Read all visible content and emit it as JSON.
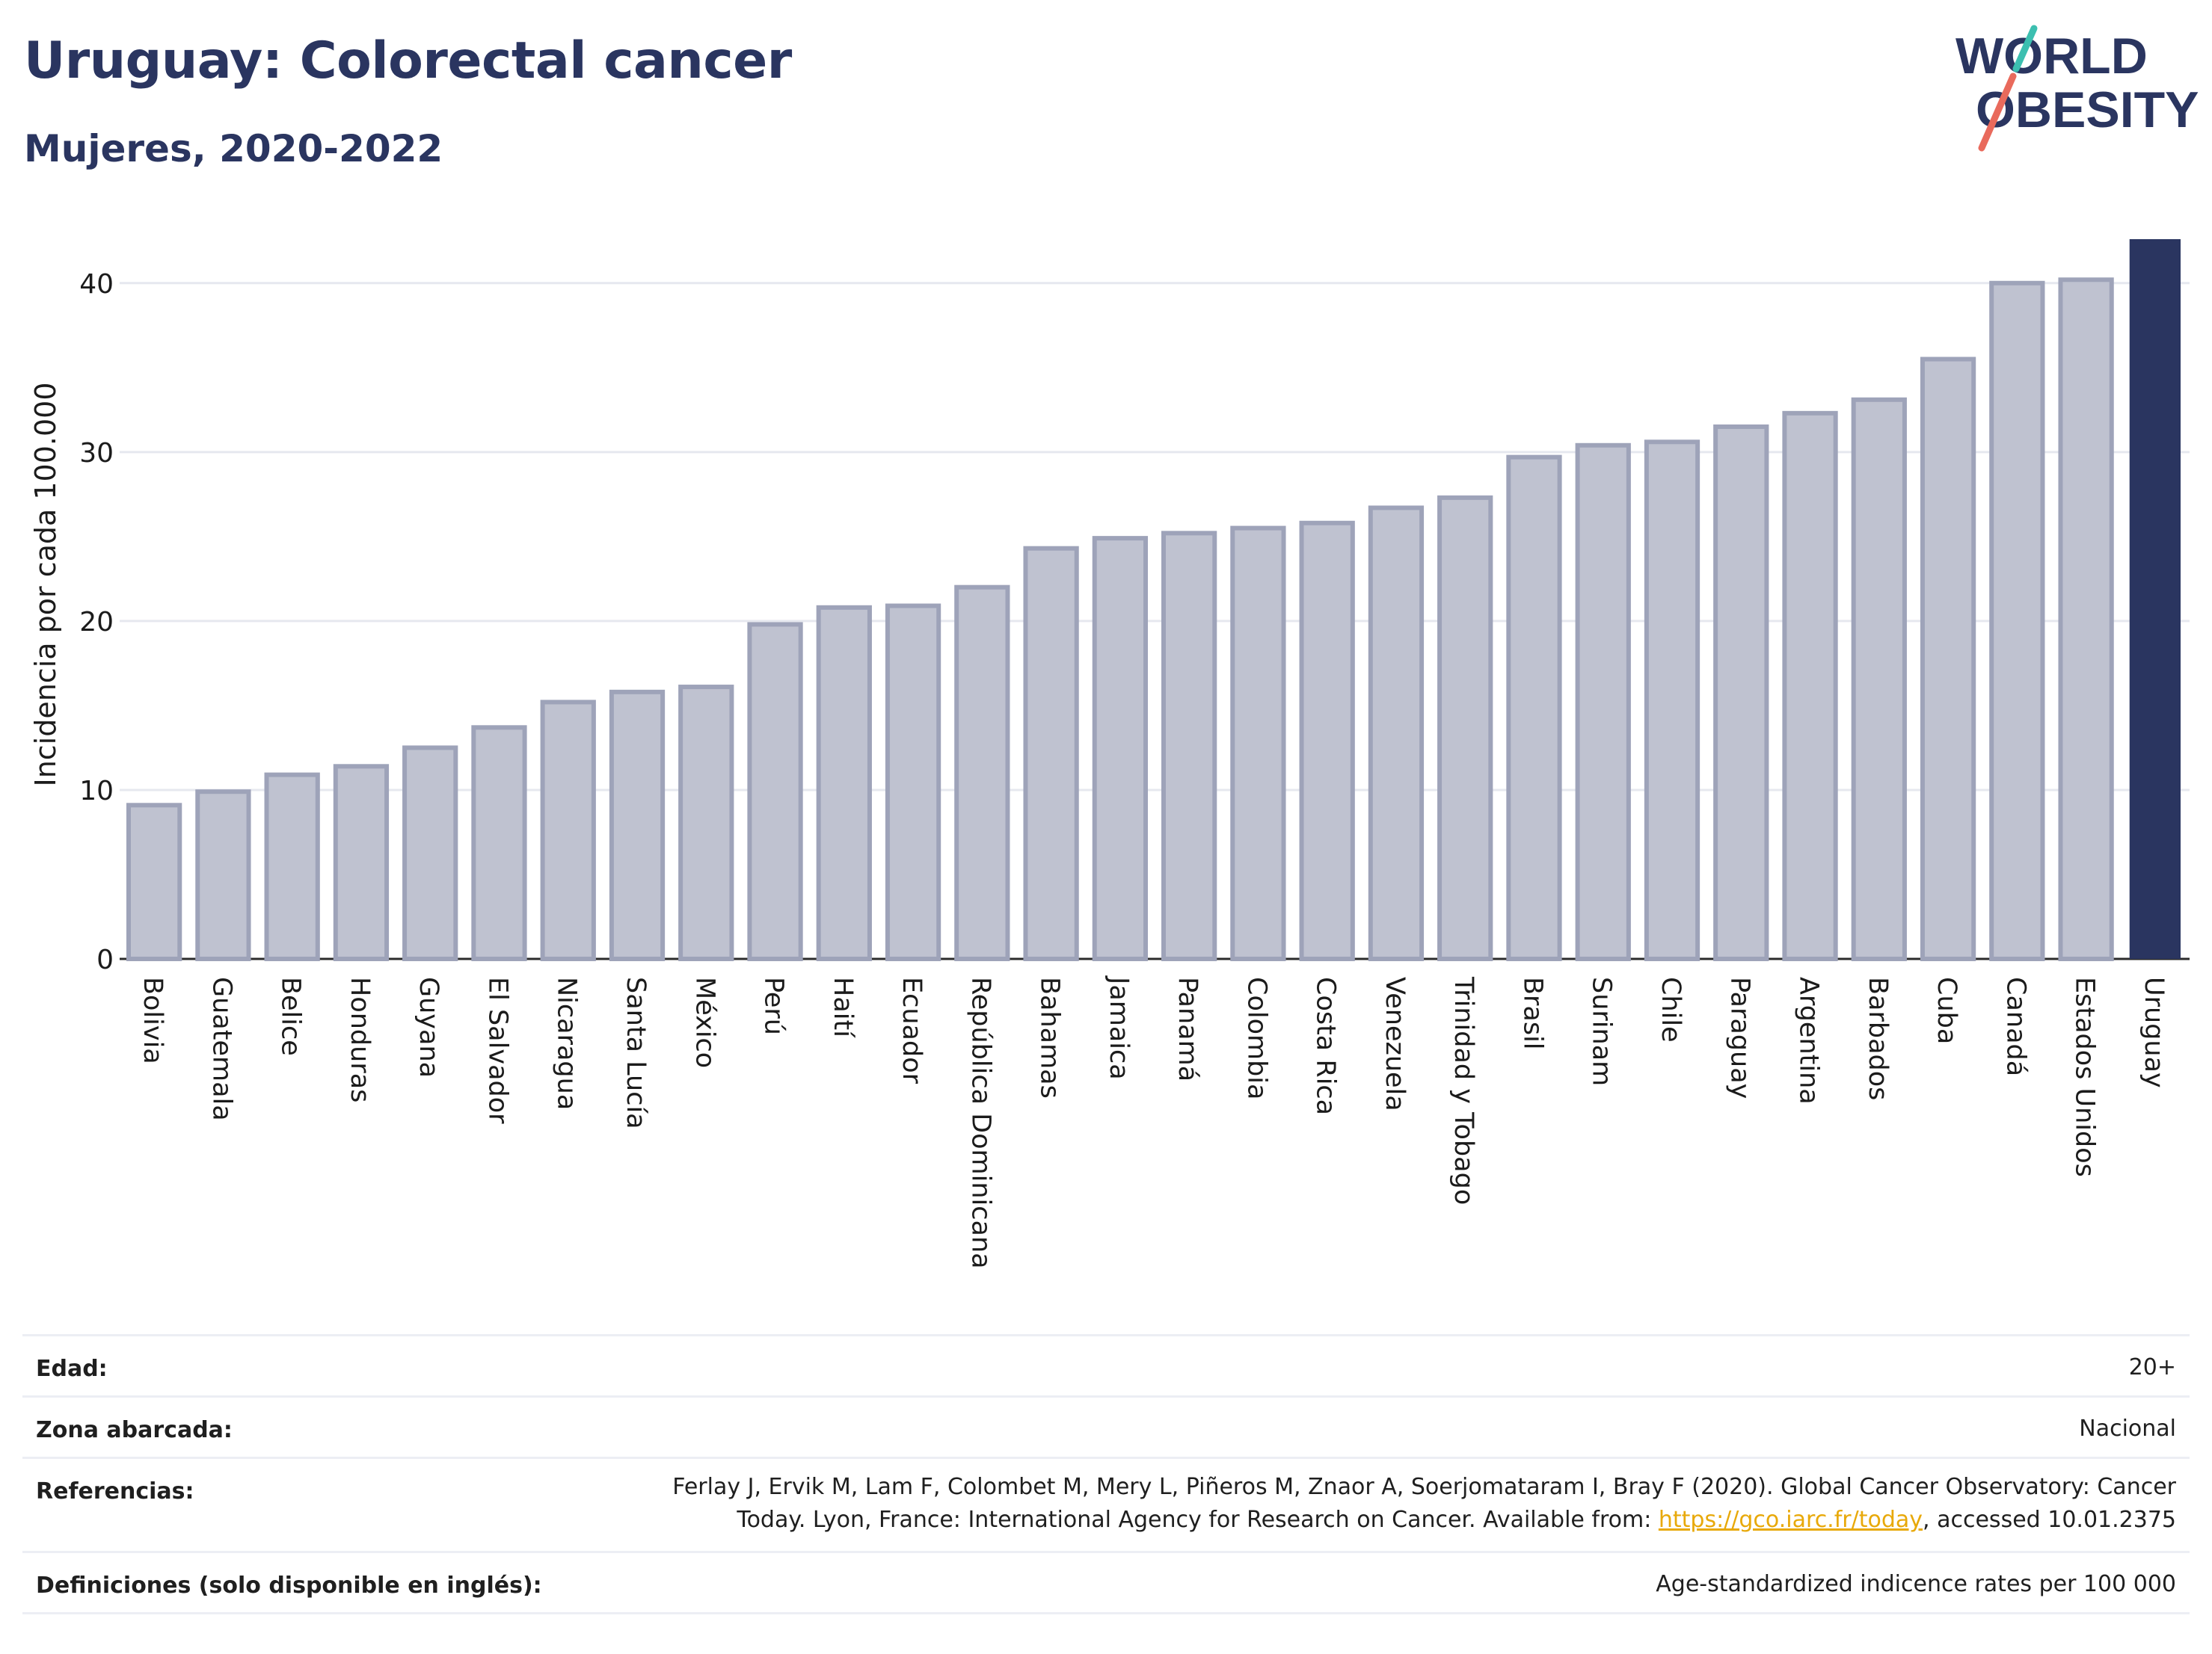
{
  "header": {
    "title": "Uruguay: Colorectal cancer",
    "subtitle": "Mujeres, 2020-2022"
  },
  "logo": {
    "line1": "WORLD",
    "line2": "OBESITY",
    "icon": "world-obesity-logo"
  },
  "colors": {
    "title": "#2a3560",
    "bar_fill": "#bfc2d0",
    "bar_stroke": "#9ea3b9",
    "highlight": "#2a3560",
    "grid": "#e6e8ef",
    "link": "#e8a90a"
  },
  "chart_data": {
    "type": "bar",
    "ylabel": "Incidencia por cada 100.000",
    "ylim": [
      0,
      42.6
    ],
    "yticks": [
      0,
      10,
      20,
      30,
      40
    ],
    "grid": true,
    "highlight_category": "Uruguay",
    "categories": [
      "Bolivia",
      "Guatemala",
      "Belice",
      "Honduras",
      "Guyana",
      "El Salvador",
      "Nicaragua",
      "Santa Lucía",
      "México",
      "Perú",
      "Haití",
      "Ecuador",
      "República Dominicana",
      "Bahamas",
      "Jamaica",
      "Panamá",
      "Colombia",
      "Costa Rica",
      "Venezuela",
      "Trinidad y Tobago",
      "Brasil",
      "Surinam",
      "Chile",
      "Paraguay",
      "Argentina",
      "Barbados",
      "Cuba",
      "Canadá",
      "Estados Unidos",
      "Uruguay"
    ],
    "values": [
      9.1,
      9.9,
      10.9,
      11.4,
      12.5,
      13.7,
      15.2,
      15.8,
      16.1,
      19.8,
      20.8,
      20.9,
      22.0,
      24.3,
      24.9,
      25.2,
      25.5,
      25.8,
      26.7,
      27.3,
      29.7,
      30.4,
      30.6,
      31.5,
      32.3,
      33.1,
      35.5,
      40.0,
      40.2,
      42.6
    ]
  },
  "meta": {
    "age_label": "Edad:",
    "age_value": "20+",
    "area_label": "Zona abarcada:",
    "area_value": "Nacional",
    "ref_label": "Referencias:",
    "ref_line1": "Ferlay J, Ervik M, Lam F, Colombet M, Mery L, Piñeros M, Znaor A, Soerjomataram I, Bray F (2020). Global Cancer Observatory: Cancer",
    "ref_line2_pre": "Today. Lyon, France: International Agency for Research on Cancer. Available from: ",
    "ref_link": "https://gco.iarc.fr/today",
    "ref_line2_post": ", accessed 10.01.2375",
    "def_label": "Definiciones (solo disponible en inglés):",
    "def_value": "Age-standardized indicence rates per 100 000"
  }
}
